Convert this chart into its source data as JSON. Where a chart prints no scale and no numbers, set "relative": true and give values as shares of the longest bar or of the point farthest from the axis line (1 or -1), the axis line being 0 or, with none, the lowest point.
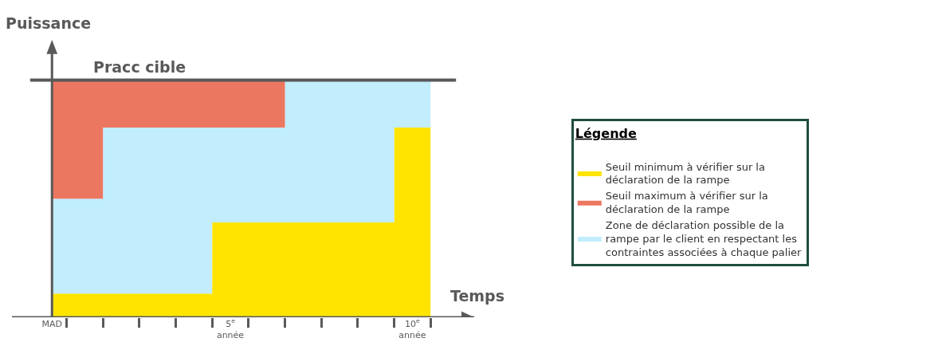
{
  "chart_data": {
    "type": "area",
    "stacked": true,
    "relative": true,
    "xlabel": "Temps",
    "ylabel": "Puissance",
    "legend_title": "Légende",
    "legend": "right",
    "x": [
      0,
      1.4,
      4.4,
      6.4,
      9.4,
      10.4
    ],
    "xlim": [
      -1.1,
      11.6
    ],
    "xticks": [
      {
        "value": 0,
        "label": "MAD"
      },
      {
        "value": 0.4,
        "label": null
      },
      {
        "value": 1.4,
        "label": null
      },
      {
        "value": 2.4,
        "label": null
      },
      {
        "value": 3.4,
        "label": null
      },
      {
        "value": 4.4,
        "label": null
      },
      {
        "value": 4.9,
        "label": "5$^{e}$\nannée"
      },
      {
        "value": 5.4,
        "label": null
      },
      {
        "value": 6.4,
        "label": null
      },
      {
        "value": 7.4,
        "label": null
      },
      {
        "value": 8.4,
        "label": null
      },
      {
        "value": 9.4,
        "label": null
      },
      {
        "value": 9.9,
        "label": "10$^{e}$\nannée"
      },
      {
        "value": 10.4,
        "label": null
      }
    ],
    "series": [
      {
        "name": "Seuil minimum à vérifier sur la déclaration de la rampe",
        "color": "#ffe400",
        "values": [
          0.1,
          0.1,
          0.4,
          0.4,
          0.8,
          0.8
        ]
      },
      {
        "name": "Zone de déclaration possible de la rampe par le client en respectant les contraintes associées à chaque palier",
        "color": "#c2edfc",
        "values": [
          0.4,
          0.7,
          0.4,
          0.6,
          0.2,
          0.2
        ]
      },
      {
        "name": "Seuil maximum à vérifier sur la déclaration de la rampe",
        "color": "#ec7760",
        "values": [
          0.5,
          0.2,
          0.2,
          0,
          0,
          0
        ]
      }
    ],
    "ref_lines": [
      {
        "axis": "y",
        "value": 1,
        "label": "Pracc cible",
        "color": "#595959"
      }
    ]
  }
}
